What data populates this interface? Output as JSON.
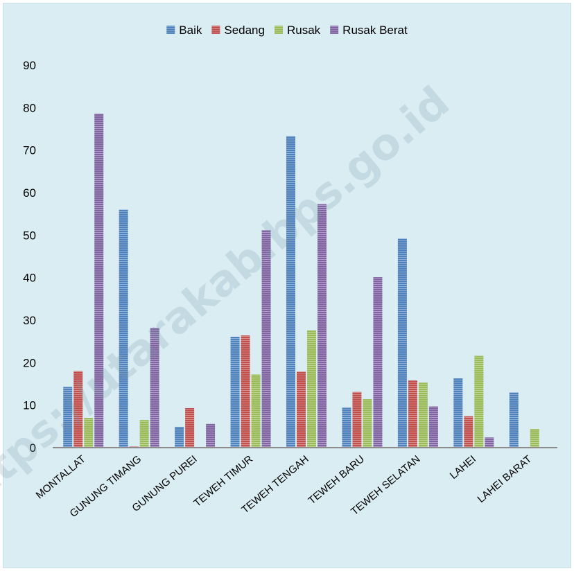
{
  "chart_data": {
    "type": "bar",
    "categories": [
      "MONTALLAT",
      "GUNUNG TIMANG",
      "GUNUNG PUREI",
      "TEWEH TIMUR",
      "TEWEH TENGAH",
      "TEWEH BARU",
      "TEWEH SELATAN",
      "LAHEI",
      "LAHEI BARAT"
    ],
    "series": [
      {
        "name": "Baik",
        "color": "#4f81bd",
        "values": [
          14.3,
          56,
          4.9,
          26.1,
          73.3,
          9.4,
          49.2,
          16.3,
          13
        ]
      },
      {
        "name": "Sedang",
        "color": "#c0504d",
        "values": [
          18,
          0.3,
          9.3,
          26.4,
          17.9,
          13.1,
          15.8,
          7.4,
          0
        ]
      },
      {
        "name": "Rusak",
        "color": "#9bbb59",
        "values": [
          7,
          6.5,
          0,
          17.2,
          27.6,
          11.4,
          15.3,
          21.6,
          4.4
        ]
      },
      {
        "name": "Rusak Berat",
        "color": "#8064a2",
        "values": [
          78.6,
          28.2,
          5.6,
          51.2,
          57.3,
          40.1,
          9.7,
          2.4,
          0
        ]
      }
    ],
    "ylim": [
      0,
      90
    ],
    "yticks": [
      "0",
      "10",
      "20",
      "30",
      "40",
      "50",
      "60",
      "70",
      "80",
      "90"
    ],
    "legend_position": "top",
    "grid": false,
    "watermark": "https://utarakab.bps.go.id",
    "title": "",
    "xlabel": "",
    "ylabel": ""
  }
}
